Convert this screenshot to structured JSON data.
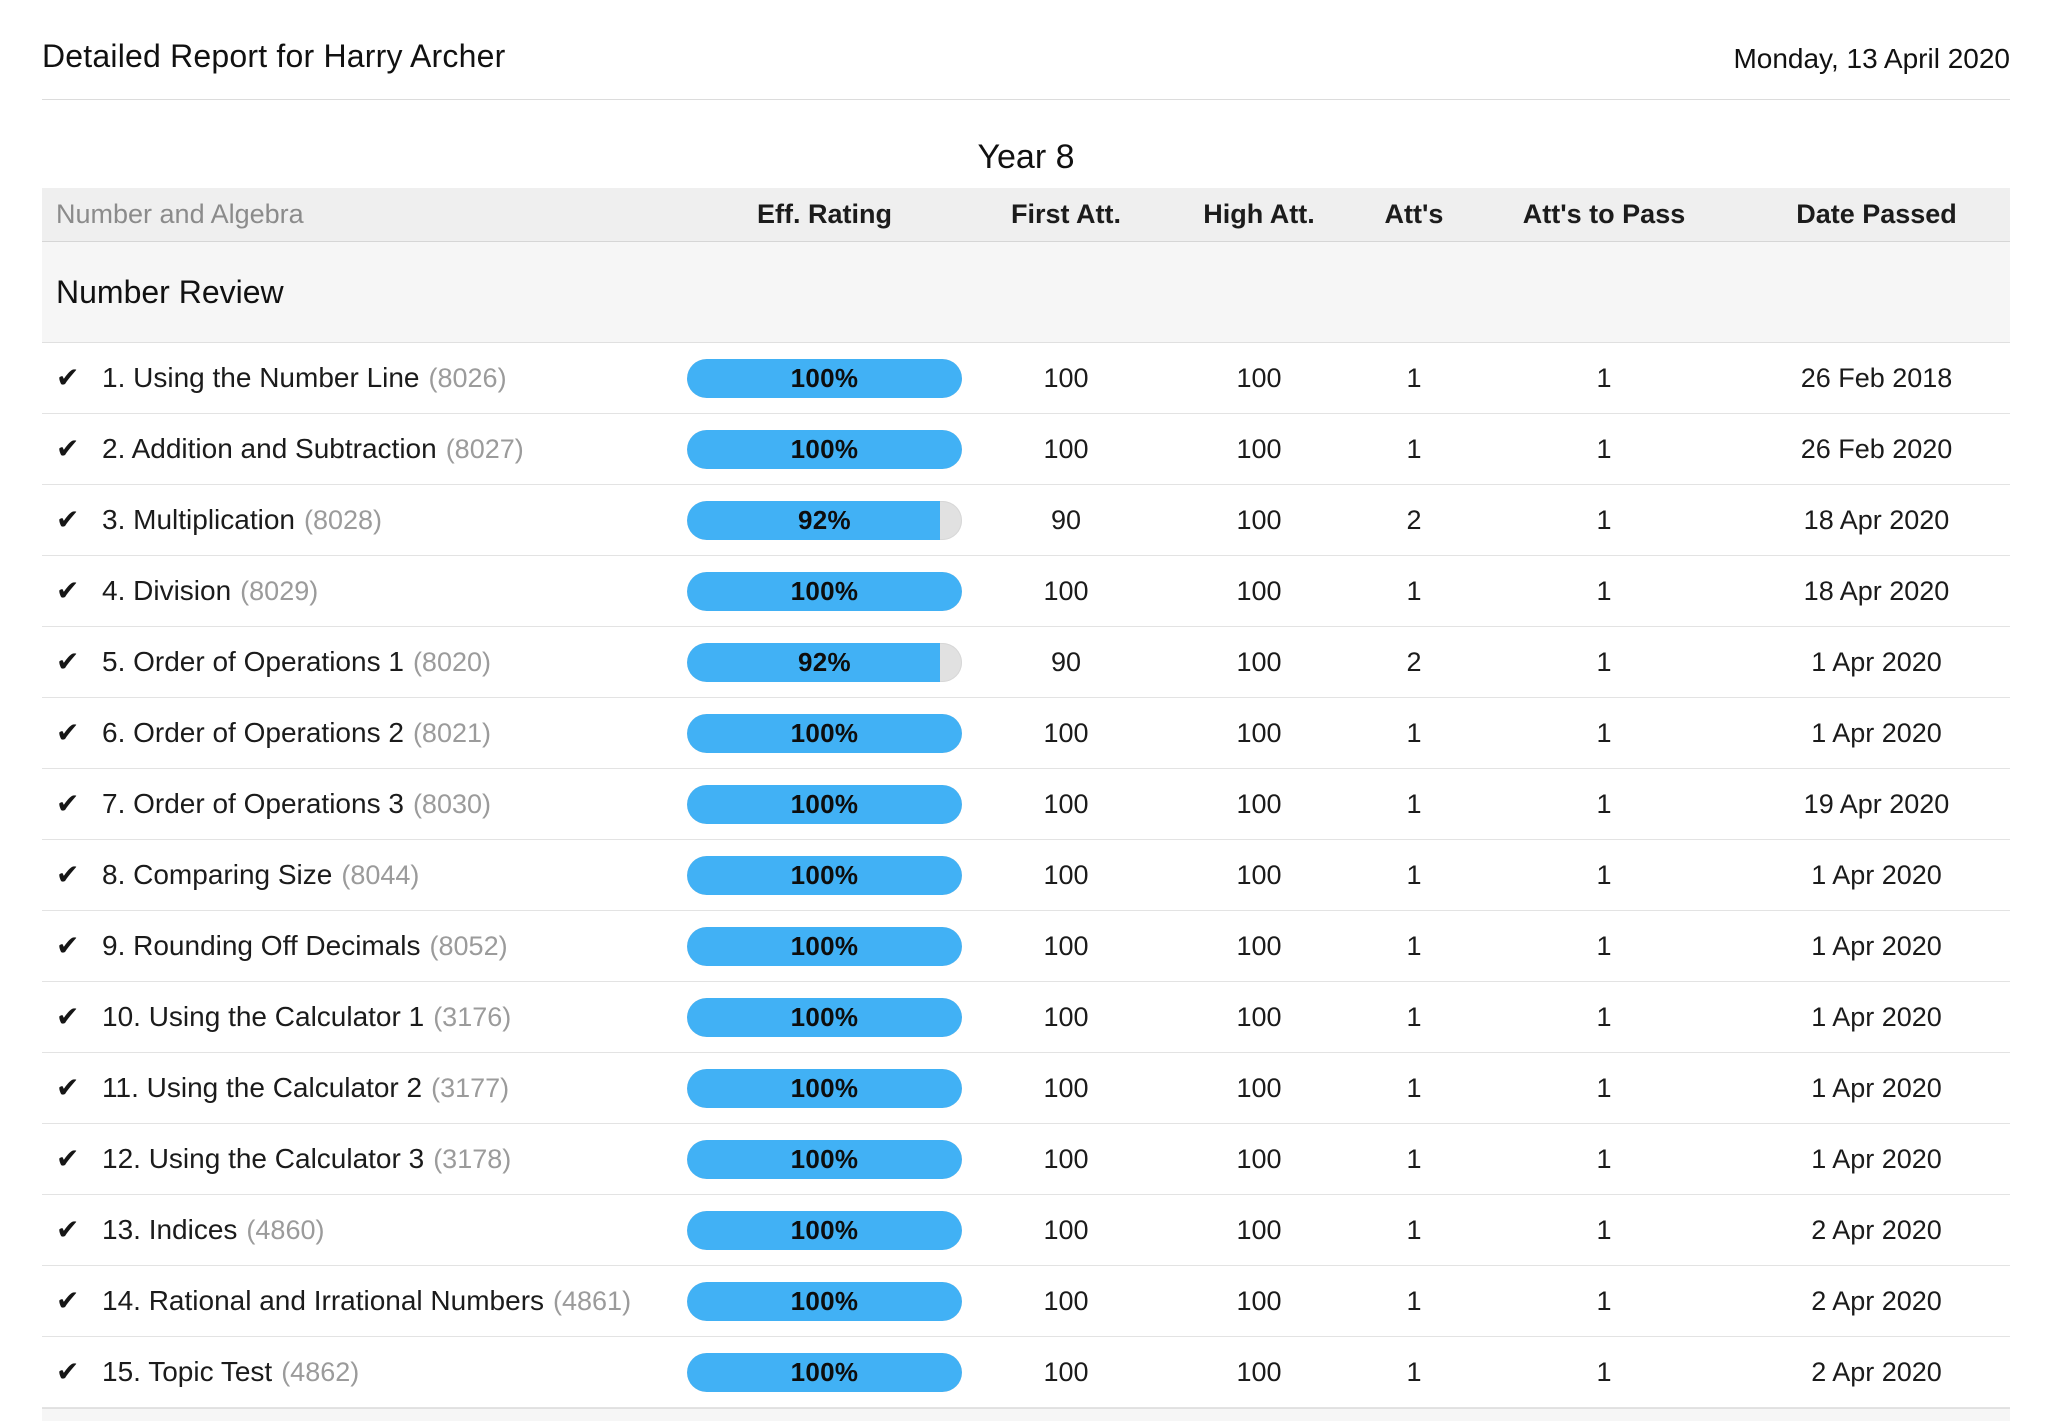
{
  "page": {
    "title": "Detailed Report for Harry Archer",
    "date": "Monday, 13 April 2020",
    "year_heading": "Year 8"
  },
  "colors": {
    "pill_fill": "#41b1f5",
    "pill_track": "#e1e1e1",
    "header_bg": "#efefef",
    "section_bg": "#f6f6f6"
  },
  "table": {
    "strand_label": "Number and Algebra",
    "columns": [
      "Eff. Rating",
      "First Att.",
      "High Att.",
      "Att's",
      "Att's to Pass",
      "Date Passed"
    ],
    "section": {
      "title": "Number Review",
      "rows": [
        {
          "check": "✔",
          "title": "1. Using the Number Line",
          "code": "(8026)",
          "eff_rating": 100,
          "eff_label": "100%",
          "first_att": "100",
          "high_att": "100",
          "atts": "1",
          "atts_to_pass": "1",
          "date_passed": "26 Feb 2018"
        },
        {
          "check": "✔",
          "title": "2. Addition and Subtraction",
          "code": "(8027)",
          "eff_rating": 100,
          "eff_label": "100%",
          "first_att": "100",
          "high_att": "100",
          "atts": "1",
          "atts_to_pass": "1",
          "date_passed": "26 Feb 2020"
        },
        {
          "check": "✔",
          "title": "3. Multiplication",
          "code": "(8028)",
          "eff_rating": 92,
          "eff_label": "92%",
          "first_att": "90",
          "high_att": "100",
          "atts": "2",
          "atts_to_pass": "1",
          "date_passed": "18 Apr 2020"
        },
        {
          "check": "✔",
          "title": "4. Division",
          "code": "(8029)",
          "eff_rating": 100,
          "eff_label": "100%",
          "first_att": "100",
          "high_att": "100",
          "atts": "1",
          "atts_to_pass": "1",
          "date_passed": "18 Apr 2020"
        },
        {
          "check": "✔",
          "title": "5. Order of Operations 1",
          "code": "(8020)",
          "eff_rating": 92,
          "eff_label": "92%",
          "first_att": "90",
          "high_att": "100",
          "atts": "2",
          "atts_to_pass": "1",
          "date_passed": "1 Apr 2020"
        },
        {
          "check": "✔",
          "title": "6. Order of Operations 2",
          "code": "(8021)",
          "eff_rating": 100,
          "eff_label": "100%",
          "first_att": "100",
          "high_att": "100",
          "atts": "1",
          "atts_to_pass": "1",
          "date_passed": "1 Apr 2020"
        },
        {
          "check": "✔",
          "title": "7. Order of Operations 3",
          "code": "(8030)",
          "eff_rating": 100,
          "eff_label": "100%",
          "first_att": "100",
          "high_att": "100",
          "atts": "1",
          "atts_to_pass": "1",
          "date_passed": "19 Apr 2020"
        },
        {
          "check": "✔",
          "title": "8. Comparing Size",
          "code": "(8044)",
          "eff_rating": 100,
          "eff_label": "100%",
          "first_att": "100",
          "high_att": "100",
          "atts": "1",
          "atts_to_pass": "1",
          "date_passed": "1 Apr 2020"
        },
        {
          "check": "✔",
          "title": "9. Rounding Off Decimals",
          "code": "(8052)",
          "eff_rating": 100,
          "eff_label": "100%",
          "first_att": "100",
          "high_att": "100",
          "atts": "1",
          "atts_to_pass": "1",
          "date_passed": "1 Apr 2020"
        },
        {
          "check": "✔",
          "title": "10. Using the Calculator 1",
          "code": "(3176)",
          "eff_rating": 100,
          "eff_label": "100%",
          "first_att": "100",
          "high_att": "100",
          "atts": "1",
          "atts_to_pass": "1",
          "date_passed": "1 Apr 2020"
        },
        {
          "check": "✔",
          "title": "11. Using the Calculator 2",
          "code": "(3177)",
          "eff_rating": 100,
          "eff_label": "100%",
          "first_att": "100",
          "high_att": "100",
          "atts": "1",
          "atts_to_pass": "1",
          "date_passed": "1 Apr 2020"
        },
        {
          "check": "✔",
          "title": "12. Using the Calculator 3",
          "code": "(3178)",
          "eff_rating": 100,
          "eff_label": "100%",
          "first_att": "100",
          "high_att": "100",
          "atts": "1",
          "atts_to_pass": "1",
          "date_passed": "1 Apr 2020"
        },
        {
          "check": "✔",
          "title": "13. Indices",
          "code": "(4860)",
          "eff_rating": 100,
          "eff_label": "100%",
          "first_att": "100",
          "high_att": "100",
          "atts": "1",
          "atts_to_pass": "1",
          "date_passed": "2 Apr 2020"
        },
        {
          "check": "✔",
          "title": "14. Rational and Irrational Numbers",
          "code": "(4861)",
          "eff_rating": 100,
          "eff_label": "100%",
          "first_att": "100",
          "high_att": "100",
          "atts": "1",
          "atts_to_pass": "1",
          "date_passed": "2 Apr 2020"
        },
        {
          "check": "✔",
          "title": "15. Topic Test",
          "code": "(4862)",
          "eff_rating": 100,
          "eff_label": "100%",
          "first_att": "100",
          "high_att": "100",
          "atts": "1",
          "atts_to_pass": "1",
          "date_passed": "2 Apr 2020"
        }
      ]
    }
  }
}
